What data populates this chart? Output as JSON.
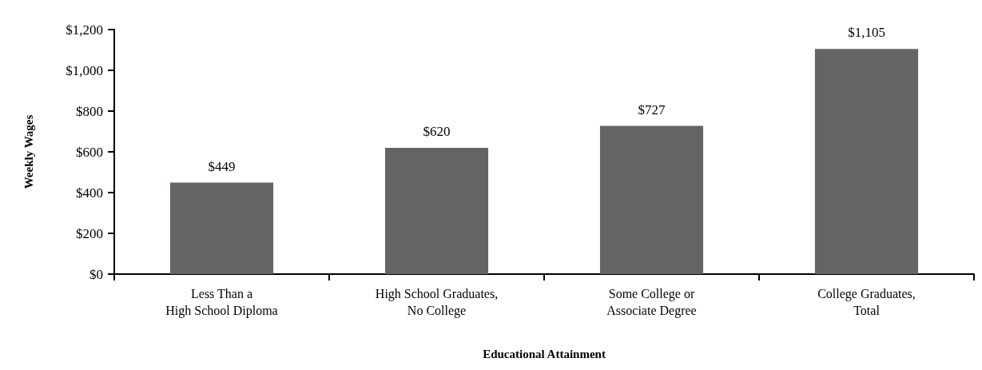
{
  "chart_data": {
    "type": "bar",
    "xlabel": "Educational Attainment",
    "ylabel": "Weekly Wages",
    "categories": [
      "Less Than a\nHigh School Diploma",
      "High School Graduates,\nNo College",
      "Some College or\nAssociate Degree",
      "College Graduates,\nTotal"
    ],
    "values": [
      449,
      620,
      727,
      1105
    ],
    "color": "#636466",
    "value_labels": [
      "$449",
      "$620",
      "$727",
      "$1,105"
    ],
    "ylim": [
      0,
      1200
    ],
    "yticks": [
      {
        "value": 0,
        "label": "$0"
      },
      {
        "value": 200,
        "label": "$200"
      },
      {
        "value": 400,
        "label": "$400"
      },
      {
        "value": 600,
        "label": "$600"
      },
      {
        "value": 800,
        "label": "$800"
      },
      {
        "value": 1000,
        "label": "$1,000"
      },
      {
        "value": 1200,
        "label": "$1,200"
      }
    ]
  }
}
